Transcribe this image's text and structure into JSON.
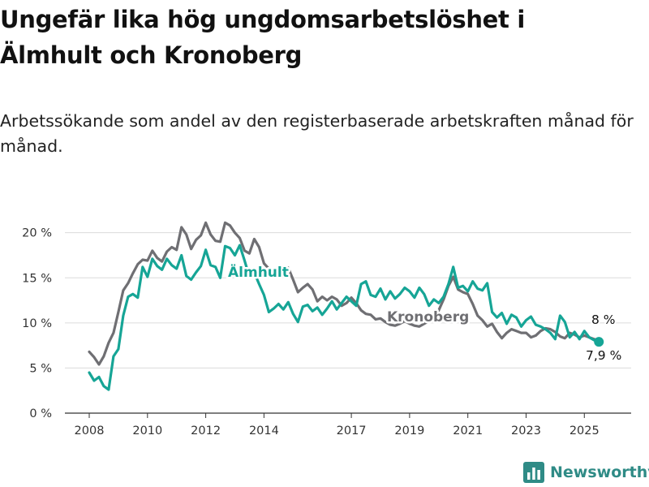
{
  "title": "Ungefär lika hög ungdomsarbetslöshet i Älmhult och Kronoberg",
  "subtitle": "Arbetssökande som andel av den registerbaserade arbetskraften månad för månad.",
  "brand": {
    "name": "Newsworthy",
    "icon": "bar-chart-logo-icon"
  },
  "colors": {
    "almhult": "#16a596",
    "kronoberg": "#6f6f73",
    "grid": "#dcdcdc",
    "axis": "#333333"
  },
  "chart_data": {
    "type": "line",
    "title": "Ungefär lika hög ungdomsarbetslöshet i Älmhult och Kronoberg",
    "subtitle": "Arbetssökande som andel av den registerbaserade arbetskraften månad för månad.",
    "xlabel": "",
    "ylabel": "",
    "x_ticks": [
      "2008",
      "2010",
      "2012",
      "2014",
      "2017",
      "2019",
      "2021",
      "2023",
      "2025"
    ],
    "y_ticks": [
      "0 %",
      "5 %",
      "10 %",
      "15 %",
      "20 %"
    ],
    "ylim": [
      0,
      21.5
    ],
    "grid": true,
    "legend": "inline labels",
    "series": [
      {
        "name": "Kronoberg",
        "end_label": "8 %",
        "points": [
          [
            "2008-01",
            6.8
          ],
          [
            "2008-03",
            6.2
          ],
          [
            "2008-05",
            5.4
          ],
          [
            "2008-07",
            6.3
          ],
          [
            "2008-09",
            7.8
          ],
          [
            "2008-11",
            8.9
          ],
          [
            "2009-01",
            11.2
          ],
          [
            "2009-03",
            13.6
          ],
          [
            "2009-05",
            14.4
          ],
          [
            "2009-07",
            15.5
          ],
          [
            "2009-09",
            16.5
          ],
          [
            "2009-11",
            17.0
          ],
          [
            "2010-01",
            16.9
          ],
          [
            "2010-03",
            18.0
          ],
          [
            "2010-05",
            17.2
          ],
          [
            "2010-07",
            16.8
          ],
          [
            "2010-09",
            17.9
          ],
          [
            "2010-11",
            18.4
          ],
          [
            "2011-01",
            18.1
          ],
          [
            "2011-03",
            20.6
          ],
          [
            "2011-05",
            19.8
          ],
          [
            "2011-07",
            18.2
          ],
          [
            "2011-09",
            19.2
          ],
          [
            "2011-11",
            19.7
          ],
          [
            "2012-01",
            21.1
          ],
          [
            "2012-03",
            19.8
          ],
          [
            "2012-05",
            19.1
          ],
          [
            "2012-07",
            19.0
          ],
          [
            "2012-09",
            21.1
          ],
          [
            "2012-11",
            20.8
          ],
          [
            "2013-01",
            20.0
          ],
          [
            "2013-03",
            19.4
          ],
          [
            "2013-05",
            18.0
          ],
          [
            "2013-07",
            17.7
          ],
          [
            "2013-09",
            19.3
          ],
          [
            "2013-11",
            18.4
          ],
          [
            "2014-01",
            16.6
          ],
          [
            "2014-03",
            16.0
          ],
          [
            "2014-05",
            15.4
          ],
          [
            "2014-07",
            15.2
          ],
          [
            "2014-09",
            15.7
          ],
          [
            "2014-11",
            16.1
          ],
          [
            "2015-01",
            14.8
          ],
          [
            "2015-03",
            13.4
          ],
          [
            "2015-05",
            13.9
          ],
          [
            "2015-07",
            14.3
          ],
          [
            "2015-09",
            13.7
          ],
          [
            "2015-11",
            12.4
          ],
          [
            "2016-01",
            12.9
          ],
          [
            "2016-03",
            12.5
          ],
          [
            "2016-05",
            12.9
          ],
          [
            "2016-07",
            12.6
          ],
          [
            "2016-09",
            11.9
          ],
          [
            "2016-11",
            12.2
          ],
          [
            "2017-01",
            12.8
          ],
          [
            "2017-03",
            12.2
          ],
          [
            "2017-05",
            11.4
          ],
          [
            "2017-07",
            11.0
          ],
          [
            "2017-09",
            10.9
          ],
          [
            "2017-11",
            10.4
          ],
          [
            "2018-01",
            10.5
          ],
          [
            "2018-03",
            10.1
          ],
          [
            "2018-05",
            9.8
          ],
          [
            "2018-07",
            9.7
          ],
          [
            "2018-09",
            9.9
          ],
          [
            "2018-11",
            10.2
          ],
          [
            "2019-01",
            9.9
          ],
          [
            "2019-03",
            9.7
          ],
          [
            "2019-05",
            9.6
          ],
          [
            "2019-07",
            9.9
          ],
          [
            "2019-09",
            10.2
          ],
          [
            "2019-11",
            10.6
          ],
          [
            "2020-01",
            11.4
          ],
          [
            "2020-03",
            12.6
          ],
          [
            "2020-05",
            14.1
          ],
          [
            "2020-07",
            15.1
          ],
          [
            "2020-09",
            13.7
          ],
          [
            "2020-11",
            13.4
          ],
          [
            "2021-01",
            13.2
          ],
          [
            "2021-03",
            12.1
          ],
          [
            "2021-05",
            10.8
          ],
          [
            "2021-07",
            10.3
          ],
          [
            "2021-09",
            9.6
          ],
          [
            "2021-11",
            9.9
          ],
          [
            "2022-01",
            9.0
          ],
          [
            "2022-03",
            8.3
          ],
          [
            "2022-05",
            8.9
          ],
          [
            "2022-07",
            9.3
          ],
          [
            "2022-09",
            9.1
          ],
          [
            "2022-11",
            8.9
          ],
          [
            "2023-01",
            8.9
          ],
          [
            "2023-03",
            8.4
          ],
          [
            "2023-05",
            8.6
          ],
          [
            "2023-07",
            9.1
          ],
          [
            "2023-09",
            9.4
          ],
          [
            "2023-11",
            9.3
          ],
          [
            "2024-01",
            9.0
          ],
          [
            "2024-03",
            8.5
          ],
          [
            "2024-05",
            8.3
          ],
          [
            "2024-07",
            8.9
          ],
          [
            "2024-09",
            8.7
          ],
          [
            "2024-11",
            8.4
          ],
          [
            "2025-01",
            8.6
          ],
          [
            "2025-03",
            8.4
          ],
          [
            "2025-05",
            8.2
          ],
          [
            "2025-07",
            8.0
          ]
        ]
      },
      {
        "name": "Älmhult",
        "end_label": "7,9 %",
        "points": [
          [
            "2008-01",
            4.5
          ],
          [
            "2008-03",
            3.6
          ],
          [
            "2008-05",
            4.0
          ],
          [
            "2008-07",
            3.0
          ],
          [
            "2008-09",
            2.6
          ],
          [
            "2008-11",
            6.3
          ],
          [
            "2009-01",
            7.1
          ],
          [
            "2009-03",
            10.8
          ],
          [
            "2009-05",
            12.9
          ],
          [
            "2009-07",
            13.2
          ],
          [
            "2009-09",
            12.8
          ],
          [
            "2009-11",
            16.2
          ],
          [
            "2010-01",
            15.1
          ],
          [
            "2010-03",
            17.1
          ],
          [
            "2010-05",
            16.3
          ],
          [
            "2010-07",
            15.9
          ],
          [
            "2010-09",
            17.1
          ],
          [
            "2010-11",
            16.4
          ],
          [
            "2011-01",
            16.0
          ],
          [
            "2011-03",
            17.5
          ],
          [
            "2011-05",
            15.2
          ],
          [
            "2011-07",
            14.8
          ],
          [
            "2011-09",
            15.6
          ],
          [
            "2011-11",
            16.3
          ],
          [
            "2012-01",
            18.1
          ],
          [
            "2012-03",
            16.4
          ],
          [
            "2012-05",
            16.2
          ],
          [
            "2012-07",
            15.0
          ],
          [
            "2012-09",
            18.5
          ],
          [
            "2012-11",
            18.3
          ],
          [
            "2013-01",
            17.5
          ],
          [
            "2013-03",
            18.6
          ],
          [
            "2013-05",
            16.9
          ],
          [
            "2013-07",
            15.1
          ],
          [
            "2013-09",
            15.6
          ],
          [
            "2013-11",
            14.3
          ],
          [
            "2014-01",
            13.1
          ],
          [
            "2014-03",
            11.2
          ],
          [
            "2014-05",
            11.6
          ],
          [
            "2014-07",
            12.1
          ],
          [
            "2014-09",
            11.5
          ],
          [
            "2014-11",
            12.3
          ],
          [
            "2015-01",
            11.0
          ],
          [
            "2015-03",
            10.1
          ],
          [
            "2015-05",
            11.8
          ],
          [
            "2015-07",
            12.0
          ],
          [
            "2015-09",
            11.3
          ],
          [
            "2015-11",
            11.7
          ],
          [
            "2016-01",
            10.9
          ],
          [
            "2016-03",
            11.6
          ],
          [
            "2016-05",
            12.4
          ],
          [
            "2016-07",
            11.5
          ],
          [
            "2016-09",
            12.2
          ],
          [
            "2016-11",
            12.9
          ],
          [
            "2017-01",
            12.4
          ],
          [
            "2017-03",
            11.9
          ],
          [
            "2017-05",
            14.3
          ],
          [
            "2017-07",
            14.6
          ],
          [
            "2017-09",
            13.1
          ],
          [
            "2017-11",
            12.9
          ],
          [
            "2018-01",
            13.8
          ],
          [
            "2018-03",
            12.6
          ],
          [
            "2018-05",
            13.5
          ],
          [
            "2018-07",
            12.7
          ],
          [
            "2018-09",
            13.2
          ],
          [
            "2018-11",
            13.9
          ],
          [
            "2019-01",
            13.5
          ],
          [
            "2019-03",
            12.8
          ],
          [
            "2019-05",
            13.9
          ],
          [
            "2019-07",
            13.2
          ],
          [
            "2019-09",
            11.9
          ],
          [
            "2019-11",
            12.6
          ],
          [
            "2020-01",
            12.2
          ],
          [
            "2020-03",
            12.9
          ],
          [
            "2020-05",
            14.3
          ],
          [
            "2020-07",
            16.2
          ],
          [
            "2020-09",
            13.9
          ],
          [
            "2020-11",
            14.1
          ],
          [
            "2021-01",
            13.5
          ],
          [
            "2021-03",
            14.6
          ],
          [
            "2021-05",
            13.8
          ],
          [
            "2021-07",
            13.6
          ],
          [
            "2021-09",
            14.4
          ],
          [
            "2021-11",
            11.2
          ],
          [
            "2022-01",
            10.6
          ],
          [
            "2022-03",
            11.1
          ],
          [
            "2022-05",
            9.9
          ],
          [
            "2022-07",
            10.9
          ],
          [
            "2022-09",
            10.6
          ],
          [
            "2022-11",
            9.6
          ],
          [
            "2023-01",
            10.3
          ],
          [
            "2023-03",
            10.7
          ],
          [
            "2023-05",
            9.8
          ],
          [
            "2023-07",
            9.6
          ],
          [
            "2023-09",
            9.3
          ],
          [
            "2023-11",
            8.9
          ],
          [
            "2024-01",
            8.2
          ],
          [
            "2024-03",
            10.8
          ],
          [
            "2024-05",
            10.1
          ],
          [
            "2024-07",
            8.4
          ],
          [
            "2024-09",
            9.0
          ],
          [
            "2024-11",
            8.2
          ],
          [
            "2025-01",
            9.1
          ],
          [
            "2025-03",
            8.4
          ],
          [
            "2025-05",
            8.1
          ],
          [
            "2025-07",
            7.9
          ]
        ]
      }
    ]
  }
}
